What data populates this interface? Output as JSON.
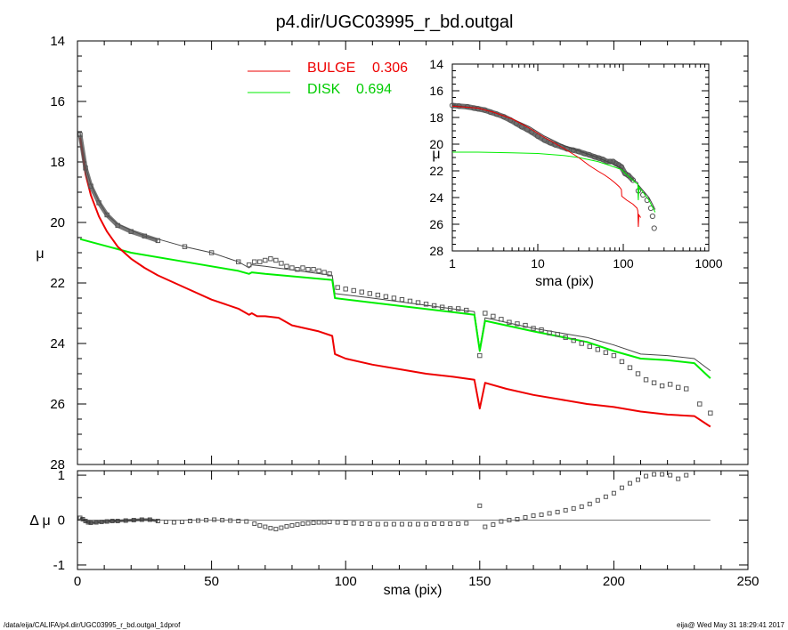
{
  "title": "p4.dir/UGC03995_r_bd.outgal",
  "footer": {
    "left": "/data/eija/CALIFA/p4.dir/UGC03995_r_bd.outgal_1dprof",
    "right": "eija@  Wed May 31 18:29:41 2017"
  },
  "colors": {
    "bulge": "#ee0000",
    "disk": "#00ee00",
    "total": "#444444",
    "obs": "#555555",
    "frame": "#000000"
  },
  "chart_data": [
    {
      "type": "line",
      "name": "main-profile",
      "title": "p4.dir/UGC03995_r_bd.outgal",
      "xlabel": "sma (pix)",
      "ylabel": "μ",
      "xlim": [
        0,
        250
      ],
      "ylim": [
        28,
        14
      ],
      "xticks": [
        0,
        50,
        100,
        150,
        200,
        250
      ],
      "xtick_labels": [
        "0",
        "50",
        "100",
        "150",
        "200",
        "250"
      ],
      "yticks": [
        14,
        16,
        18,
        20,
        22,
        24,
        26,
        28
      ],
      "ytick_labels": [
        "14",
        "16",
        "18",
        "20",
        "22",
        "24",
        "26",
        "28"
      ],
      "legend": [
        {
          "label": "BULGE",
          "value": "0.306",
          "color": "#ee0000"
        },
        {
          "label": "DISK",
          "value": "0.694",
          "color": "#00ee00"
        }
      ],
      "series": [
        {
          "name": "BULGE",
          "color": "#ee0000",
          "x": [
            1,
            3,
            5,
            8,
            11,
            15,
            20,
            25,
            30,
            40,
            50,
            60,
            64,
            65,
            67,
            70,
            75,
            80,
            90,
            95,
            96,
            100,
            110,
            120,
            130,
            140,
            148,
            150,
            152,
            160,
            170,
            180,
            190,
            200,
            210,
            220,
            230,
            236
          ],
          "y": [
            17.2,
            18.4,
            19.1,
            19.8,
            20.3,
            20.8,
            21.2,
            21.5,
            21.75,
            22.15,
            22.55,
            22.85,
            23.05,
            23.0,
            23.1,
            23.1,
            23.15,
            23.4,
            23.6,
            23.75,
            24.35,
            24.5,
            24.7,
            24.85,
            25.0,
            25.1,
            25.2,
            26.15,
            25.3,
            25.5,
            25.7,
            25.85,
            26.0,
            26.1,
            26.25,
            26.35,
            26.4,
            26.75
          ]
        },
        {
          "name": "DISK",
          "color": "#00ee00",
          "x": [
            1,
            20,
            40,
            60,
            64,
            65,
            70,
            95,
            96,
            110,
            148,
            150,
            152,
            170,
            190,
            200,
            210,
            220,
            230,
            236
          ],
          "y": [
            20.55,
            21.0,
            21.3,
            21.6,
            21.7,
            21.65,
            21.7,
            21.9,
            22.5,
            22.65,
            23.05,
            24.25,
            23.25,
            23.6,
            23.95,
            24.25,
            24.5,
            24.55,
            24.65,
            25.15
          ]
        },
        {
          "name": "TOTAL",
          "color": "#444444",
          "x": [
            1,
            3,
            5,
            8,
            11,
            15,
            20,
            25,
            30,
            40,
            50,
            60,
            64,
            65,
            70,
            95,
            96,
            110,
            148,
            150,
            152,
            170,
            190,
            200,
            210,
            220,
            230,
            236
          ],
          "y": [
            17.05,
            18.15,
            18.75,
            19.3,
            19.75,
            20.05,
            20.25,
            20.45,
            20.55,
            20.8,
            21.0,
            21.3,
            21.5,
            21.4,
            21.45,
            21.75,
            22.35,
            22.5,
            22.95,
            24.15,
            23.15,
            23.5,
            23.8,
            24.05,
            24.35,
            24.4,
            24.5,
            24.9
          ]
        },
        {
          "name": "OBSERVED",
          "color": "#555555",
          "marker": "square",
          "x": [
            1,
            3,
            5,
            8,
            11,
            15,
            20,
            25,
            30,
            40,
            50,
            60,
            64,
            66,
            68,
            70,
            72,
            74,
            76,
            78,
            80,
            82,
            84,
            86,
            88,
            90,
            92,
            94,
            97,
            100,
            103,
            106,
            109,
            112,
            115,
            118,
            121,
            124,
            127,
            130,
            133,
            136,
            139,
            142,
            145,
            150,
            152,
            155,
            158,
            161,
            164,
            167,
            170,
            173,
            176,
            179,
            182,
            185,
            188,
            191,
            194,
            197,
            200,
            203,
            206,
            209,
            212,
            215,
            218,
            221,
            224,
            227,
            232,
            236
          ],
          "y": [
            17.1,
            18.2,
            18.8,
            19.35,
            19.75,
            20.1,
            20.3,
            20.45,
            20.6,
            20.8,
            21.0,
            21.3,
            21.4,
            21.3,
            21.3,
            21.25,
            21.2,
            21.25,
            21.35,
            21.45,
            21.5,
            21.55,
            21.5,
            21.55,
            21.55,
            21.6,
            21.65,
            21.7,
            22.15,
            22.2,
            22.25,
            22.3,
            22.35,
            22.4,
            22.45,
            22.5,
            22.55,
            22.6,
            22.65,
            22.7,
            22.75,
            22.8,
            22.85,
            22.85,
            22.9,
            24.4,
            23.0,
            23.1,
            23.2,
            23.3,
            23.35,
            23.4,
            23.5,
            23.55,
            23.65,
            23.7,
            23.8,
            23.9,
            24.0,
            24.1,
            24.2,
            24.3,
            24.4,
            24.6,
            24.8,
            25.0,
            25.2,
            25.3,
            25.4,
            25.35,
            25.45,
            25.5,
            26.0,
            26.3
          ]
        }
      ]
    },
    {
      "type": "scatter",
      "name": "residuals",
      "xlabel": "sma (pix)",
      "ylabel": "Δ μ",
      "xlim": [
        0,
        250
      ],
      "ylim": [
        -1,
        1
      ],
      "yticks": [
        -1,
        0,
        1
      ],
      "ytick_labels": [
        "-1",
        "0",
        "1"
      ],
      "zero_line": 0,
      "series": [
        {
          "name": "residual",
          "color": "#555555",
          "x": [
            1,
            2,
            3,
            4,
            5,
            7,
            9,
            11,
            13,
            15,
            18,
            21,
            24,
            27,
            30,
            33,
            36,
            39,
            42,
            45,
            48,
            51,
            54,
            57,
            60,
            63,
            66,
            68,
            70,
            72,
            74,
            76,
            78,
            80,
            82,
            84,
            86,
            88,
            90,
            92,
            94,
            97,
            100,
            103,
            106,
            109,
            112,
            115,
            118,
            121,
            124,
            127,
            130,
            133,
            136,
            139,
            142,
            145,
            150,
            152,
            155,
            158,
            161,
            164,
            167,
            170,
            173,
            176,
            179,
            182,
            185,
            188,
            191,
            194,
            197,
            200,
            203,
            206,
            209,
            212,
            215,
            218,
            221,
            224,
            227
          ],
          "y": [
            0.05,
            0.02,
            -0.02,
            -0.05,
            -0.06,
            -0.05,
            -0.04,
            -0.03,
            -0.02,
            -0.02,
            -0.01,
            0.0,
            0.01,
            0.01,
            -0.02,
            -0.04,
            -0.05,
            -0.04,
            -0.02,
            -0.01,
            0.0,
            0.01,
            0.0,
            -0.01,
            -0.02,
            -0.03,
            -0.08,
            -0.12,
            -0.15,
            -0.18,
            -0.2,
            -0.17,
            -0.14,
            -0.12,
            -0.1,
            -0.08,
            -0.07,
            -0.06,
            -0.05,
            -0.05,
            -0.04,
            -0.05,
            -0.06,
            -0.07,
            -0.08,
            -0.08,
            -0.09,
            -0.09,
            -0.09,
            -0.09,
            -0.09,
            -0.09,
            -0.09,
            -0.08,
            -0.08,
            -0.08,
            -0.08,
            -0.07,
            0.32,
            -0.15,
            -0.1,
            -0.03,
            0.0,
            0.02,
            0.06,
            0.1,
            0.12,
            0.15,
            0.18,
            0.22,
            0.26,
            0.3,
            0.36,
            0.44,
            0.52,
            0.6,
            0.72,
            0.82,
            0.9,
            0.98,
            1.02,
            1.02,
            1.0,
            0.92,
            1.0
          ]
        }
      ]
    },
    {
      "type": "line",
      "name": "inset-log-profile",
      "xlabel": "sma (pix)",
      "ylabel": "μ",
      "xscale": "log",
      "xlim": [
        1,
        1000
      ],
      "ylim": [
        28,
        14
      ],
      "xticks": [
        1,
        10,
        100,
        1000
      ],
      "xtick_labels": [
        "1",
        "10",
        "100",
        "1000"
      ],
      "yticks": [
        14,
        16,
        18,
        20,
        22,
        24,
        26,
        28
      ],
      "ytick_labels": [
        "14",
        "16",
        "18",
        "20",
        "22",
        "24",
        "26",
        "28"
      ],
      "series": [
        {
          "name": "BULGE",
          "color": "#ee0000",
          "x": [
            1,
            2,
            3,
            5,
            8,
            12,
            20,
            30,
            40,
            50,
            60,
            70,
            80,
            90,
            95,
            96,
            110,
            130,
            145,
            148,
            150,
            152,
            160
          ],
          "y": [
            17.15,
            17.3,
            17.6,
            18.1,
            18.8,
            19.5,
            20.3,
            21.0,
            21.6,
            22.0,
            22.3,
            22.6,
            22.9,
            23.2,
            23.4,
            23.9,
            24.2,
            24.5,
            24.8,
            25.0,
            26.2,
            25.3,
            25.5
          ]
        },
        {
          "name": "DISK",
          "color": "#00ee00",
          "x": [
            1,
            2,
            5,
            10,
            20,
            30,
            50,
            70,
            95,
            110,
            140,
            148,
            150,
            152,
            170,
            200,
            236
          ],
          "y": [
            20.6,
            20.6,
            20.65,
            20.7,
            20.85,
            21.0,
            21.3,
            21.6,
            21.9,
            22.3,
            22.9,
            23.0,
            24.2,
            23.2,
            23.6,
            24.2,
            25.1
          ]
        },
        {
          "name": "TOTAL",
          "color": "#444444",
          "x": [
            1,
            2,
            3,
            5,
            8,
            12,
            20,
            30,
            50,
            70,
            95,
            110,
            148,
            150,
            152,
            200,
            236
          ],
          "y": [
            17.1,
            17.3,
            17.6,
            18.1,
            18.7,
            19.4,
            20.1,
            20.5,
            21.0,
            21.4,
            21.8,
            22.3,
            22.9,
            24.1,
            23.1,
            24.0,
            24.9
          ]
        },
        {
          "name": "OBSERVED",
          "color": "#555555",
          "marker": "circle",
          "x": [
            1,
            1.2,
            1.5,
            1.8,
            2,
            2.4,
            2.8,
            3.3,
            4,
            4.8,
            5.6,
            6.5,
            7.5,
            8.5,
            10,
            12,
            14,
            16,
            19,
            22,
            26,
            30,
            35,
            40,
            46,
            52,
            58,
            64,
            70,
            76,
            82,
            88,
            95,
            105,
            115,
            130,
            150,
            170,
            190,
            210,
            220,
            230
          ],
          "y": [
            17.1,
            17.15,
            17.2,
            17.3,
            17.35,
            17.45,
            17.6,
            17.75,
            17.95,
            18.2,
            18.45,
            18.7,
            18.9,
            19.1,
            19.4,
            19.7,
            19.9,
            20.05,
            20.2,
            20.35,
            20.45,
            20.55,
            20.7,
            20.8,
            20.95,
            21.05,
            21.15,
            21.3,
            21.3,
            21.3,
            21.45,
            21.55,
            21.7,
            22.2,
            22.35,
            22.7,
            23.5,
            23.8,
            24.2,
            24.8,
            25.4,
            26.3
          ]
        }
      ]
    }
  ]
}
